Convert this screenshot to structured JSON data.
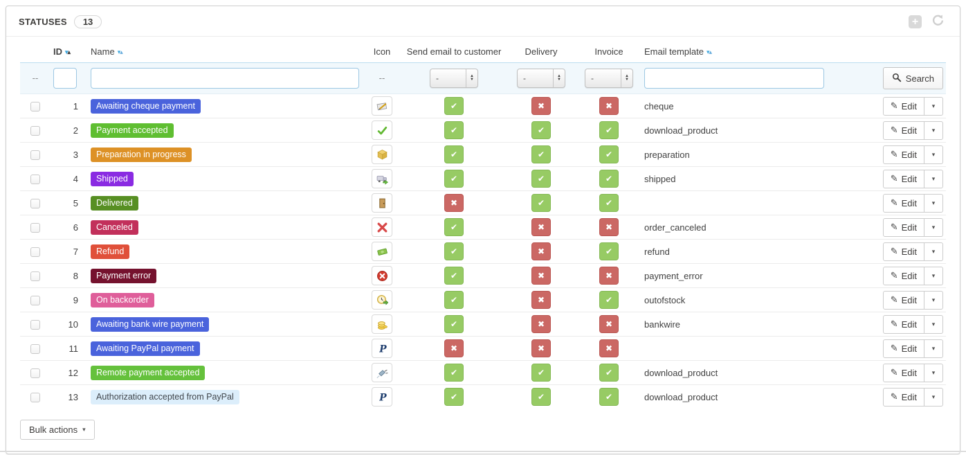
{
  "panel": {
    "title": "STATUSES",
    "count": "13"
  },
  "toolbar": {
    "add_icon": "plus-icon",
    "refresh_icon": "refresh-icon",
    "add_glyph": "+"
  },
  "theme": {
    "text": "#414141",
    "panel_border": "#cfcfcf",
    "filter_bg": "#f1f8fc",
    "filter_border": "#bbdeef",
    "input_border": "#9cc7e3",
    "toggle_on_bg": "#97cb64",
    "toggle_on_border": "#85b955",
    "toggle_off_bg": "#cb6864",
    "toggle_off_border": "#ba5652",
    "sort_blue": "#41a8de",
    "sort_blue_light": "#64abdc",
    "sort_dark": "#3e3c3b"
  },
  "glyphs": {
    "check": "✔",
    "cross": "✖",
    "caret_down": "▾",
    "sort_down": "▾",
    "sort_up": "▴",
    "pencil": "✎"
  },
  "table": {
    "columns": [
      {
        "label": ""
      },
      {
        "label": "ID",
        "sortable": true
      },
      {
        "label": "Name",
        "sortable": true
      },
      {
        "label": "Icon"
      },
      {
        "label": "Send email to customer"
      },
      {
        "label": "Delivery"
      },
      {
        "label": "Invoice"
      },
      {
        "label": "Email template",
        "sortable": true
      },
      {
        "label": ""
      }
    ],
    "filter": {
      "dash": "--",
      "id_value": "",
      "id_placeholder": "",
      "name_value": "",
      "name_placeholder": "",
      "select_value": "-",
      "template_value": "",
      "template_placeholder": "",
      "search_label": "Search",
      "search_icon": "magnifier-icon"
    },
    "rows": [
      {
        "id": "1",
        "name": "Awaiting cheque payment",
        "badge_bg": "#4a63dc",
        "badge_text": "#ffffff",
        "icon": "cheque-icon",
        "send_email": true,
        "delivery": false,
        "invoice": false,
        "template": "cheque"
      },
      {
        "id": "2",
        "name": "Payment accepted",
        "badge_bg": "#5fbe31",
        "badge_text": "#ffffff",
        "icon": "check-icon",
        "send_email": true,
        "delivery": true,
        "invoice": true,
        "template": "download_product"
      },
      {
        "id": "3",
        "name": "Preparation in progress",
        "badge_bg": "#dd9126",
        "badge_text": "#ffffff",
        "icon": "package-icon",
        "send_email": true,
        "delivery": true,
        "invoice": true,
        "template": "preparation"
      },
      {
        "id": "4",
        "name": "Shipped",
        "badge_bg": "#8a2be2",
        "badge_text": "#ffffff",
        "icon": "truck-icon",
        "send_email": true,
        "delivery": true,
        "invoice": true,
        "template": "shipped"
      },
      {
        "id": "5",
        "name": "Delivered",
        "badge_bg": "#578f23",
        "badge_text": "#ffffff",
        "icon": "door-icon",
        "send_email": false,
        "delivery": true,
        "invoice": true,
        "template": ""
      },
      {
        "id": "6",
        "name": "Canceled",
        "badge_bg": "#c2305b",
        "badge_text": "#ffffff",
        "icon": "cross-icon",
        "send_email": true,
        "delivery": false,
        "invoice": false,
        "template": "order_canceled"
      },
      {
        "id": "7",
        "name": "Refund",
        "badge_bg": "#e0503a",
        "badge_text": "#ffffff",
        "icon": "banknote-icon",
        "send_email": true,
        "delivery": false,
        "invoice": true,
        "template": "refund"
      },
      {
        "id": "8",
        "name": "Payment error",
        "badge_bg": "#75122e",
        "badge_text": "#ffffff",
        "icon": "error-icon",
        "send_email": true,
        "delivery": false,
        "invoice": false,
        "template": "payment_error"
      },
      {
        "id": "9",
        "name": "On backorder",
        "badge_bg": "#df5e9a",
        "badge_text": "#ffffff",
        "icon": "backorder-clock-icon",
        "send_email": true,
        "delivery": false,
        "invoice": true,
        "template": "outofstock"
      },
      {
        "id": "10",
        "name": "Awaiting bank wire payment",
        "badge_bg": "#4a63dc",
        "badge_text": "#ffffff",
        "icon": "coins-icon",
        "send_email": true,
        "delivery": false,
        "invoice": false,
        "template": "bankwire"
      },
      {
        "id": "11",
        "name": "Awaiting PayPal payment",
        "badge_bg": "#4a63dc",
        "badge_text": "#ffffff",
        "icon": "paypal-icon",
        "send_email": false,
        "delivery": false,
        "invoice": false,
        "template": ""
      },
      {
        "id": "12",
        "name": "Remote payment accepted",
        "badge_bg": "#65c13c",
        "badge_text": "#ffffff",
        "icon": "plug-icon",
        "send_email": true,
        "delivery": true,
        "invoice": true,
        "template": "download_product"
      },
      {
        "id": "13",
        "name": "Authorization accepted from PayPal",
        "badge_bg": "#dceefb",
        "badge_text": "#41464c",
        "icon": "paypal-icon",
        "send_email": true,
        "delivery": true,
        "invoice": true,
        "template": "download_product"
      }
    ]
  },
  "actions": {
    "edit_label": "Edit"
  },
  "footer": {
    "bulk_actions_label": "Bulk actions"
  }
}
